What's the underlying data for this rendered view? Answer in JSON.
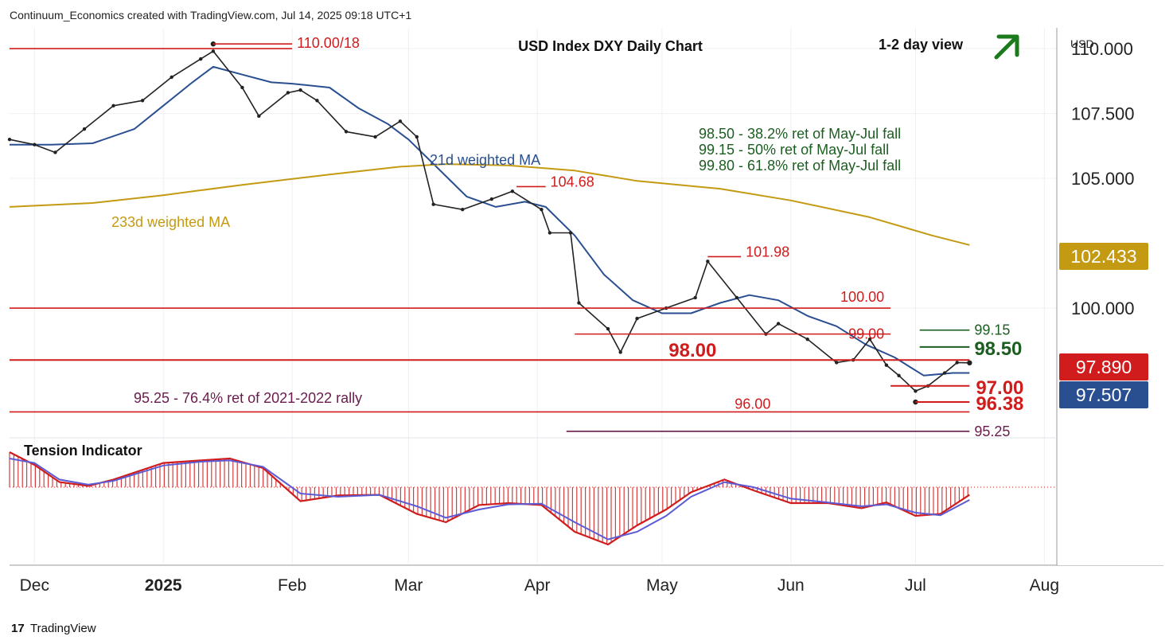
{
  "header": {
    "created_by": "Continuum_Economics created with TradingView.com, Jul 14, 2025 09:18 UTC+1",
    "chart_title": "USD Index DXY Daily Chart",
    "view_label": "1-2 day view",
    "currency": "USD",
    "footer_brand": "TradingView",
    "view_arrow_color": "#1b7a1b"
  },
  "chart_data": {
    "type": "line",
    "title": "USD Index DXY Daily Chart",
    "instrument": "USD Index DXY",
    "timeframe": "Daily",
    "ylim": [
      95.0,
      110.8
    ],
    "y_ticks": [
      {
        "value": 110.0,
        "label": "110.000"
      },
      {
        "value": 107.5,
        "label": "107.500"
      },
      {
        "value": 105.0,
        "label": "105.000"
      },
      {
        "value": 100.0,
        "label": "100.000"
      }
    ],
    "x_ticks": [
      {
        "date": "2024-12-01",
        "label": "Dec",
        "bold": false
      },
      {
        "date": "2025-01-01",
        "label": "2025",
        "bold": true
      },
      {
        "date": "2025-02-01",
        "label": "Feb",
        "bold": false
      },
      {
        "date": "2025-03-01",
        "label": "Mar",
        "bold": false
      },
      {
        "date": "2025-04-01",
        "label": "Apr",
        "bold": false
      },
      {
        "date": "2025-05-01",
        "label": "May",
        "bold": false
      },
      {
        "date": "2025-06-01",
        "label": "Jun",
        "bold": false
      },
      {
        "date": "2025-07-01",
        "label": "Jul",
        "bold": false
      },
      {
        "date": "2025-08-01",
        "label": "Aug",
        "bold": false
      }
    ],
    "price_badges": [
      {
        "value": 102.433,
        "label": "102.433",
        "color": "#c49a12"
      },
      {
        "value": 97.89,
        "label": "97.890",
        "color": "#d01c1c"
      },
      {
        "value": 97.507,
        "label": "97.507",
        "color": "#2a4f91"
      }
    ],
    "key_points": [
      {
        "name": "high",
        "date": "2025-01-13",
        "value": 110.18
      },
      {
        "name": "low",
        "date": "2025-07-01",
        "value": 96.38
      },
      {
        "name": "last",
        "date": "2025-07-14",
        "value": 97.89
      }
    ],
    "levels": [
      {
        "value": 110.0,
        "label": "110.00/18",
        "color": "#d01c1c",
        "from": "2024-11-25",
        "to": "2025-02-01",
        "bold": false
      },
      {
        "value": 104.68,
        "label": "104.68",
        "color": "#d01c1c",
        "from": "2025-03-27",
        "to": "2025-04-03",
        "bold": false
      },
      {
        "value": 101.98,
        "label": "101.98",
        "color": "#d01c1c",
        "from": "2025-05-12",
        "to": "2025-05-20",
        "bold": false
      },
      {
        "value": 100.0,
        "label": "100.00",
        "color": "#d01c1c",
        "from": "2024-11-25",
        "to": "2025-06-25",
        "bold": false
      },
      {
        "value": 99.0,
        "label": "99.00",
        "color": "#d01c1c",
        "from": "2025-04-10",
        "to": "2025-06-25",
        "bold": false
      },
      {
        "value": 98.0,
        "label": "98.00",
        "color": "#d01c1c",
        "from": "2024-11-25",
        "to": "2025-07-14",
        "bold": true
      },
      {
        "value": 97.0,
        "label": "97.00",
        "color": "#d01c1c",
        "from": "2025-06-25",
        "to": "2025-07-14",
        "bold": true
      },
      {
        "value": 96.38,
        "label": "96.38",
        "color": "#d01c1c",
        "from": "2025-07-01",
        "to": "2025-07-14",
        "bold": true
      },
      {
        "value": 96.0,
        "label": "96.00",
        "color": "#d01c1c",
        "from": "2024-11-25",
        "to": "2025-07-14",
        "bold": false
      },
      {
        "value": 99.15,
        "label": "99.15",
        "color": "#1b5e20",
        "from": "2025-07-02",
        "to": "2025-07-14",
        "bold": false
      },
      {
        "value": 98.5,
        "label": "98.50",
        "color": "#1b5e20",
        "from": "2025-07-02",
        "to": "2025-07-14",
        "bold": true
      },
      {
        "value": 95.25,
        "label": "95.25",
        "color": "#6a1b4d",
        "from": "2025-04-08",
        "to": "2025-07-14",
        "bold": false
      }
    ],
    "retracement_notes": [
      "98.50 - 38.2% ret of May-Jul fall",
      "99.15 - 50% ret of May-Jul fall",
      "99.80 - 61.8% ret of May-Jul fall"
    ],
    "rally_note": "95.25 - 76.4% ret of 2021-2022 rally",
    "series": [
      {
        "name": "21d weighted MA",
        "color": "#2a4f91",
        "points": [
          [
            "2024-11-25",
            106.3
          ],
          [
            "2024-12-05",
            106.3
          ],
          [
            "2024-12-15",
            106.35
          ],
          [
            "2024-12-25",
            106.9
          ],
          [
            "2025-01-01",
            107.8
          ],
          [
            "2025-01-08",
            108.7
          ],
          [
            "2025-01-13",
            109.3
          ],
          [
            "2025-01-20",
            109.0
          ],
          [
            "2025-01-27",
            108.7
          ],
          [
            "2025-02-01",
            108.65
          ],
          [
            "2025-02-10",
            108.5
          ],
          [
            "2025-02-17",
            107.7
          ],
          [
            "2025-02-24",
            107.1
          ],
          [
            "2025-03-01",
            106.5
          ],
          [
            "2025-03-08",
            105.4
          ],
          [
            "2025-03-15",
            104.3
          ],
          [
            "2025-03-22",
            103.9
          ],
          [
            "2025-03-29",
            104.1
          ],
          [
            "2025-04-03",
            103.9
          ],
          [
            "2025-04-10",
            102.8
          ],
          [
            "2025-04-17",
            101.3
          ],
          [
            "2025-04-24",
            100.3
          ],
          [
            "2025-05-01",
            99.8
          ],
          [
            "2025-05-08",
            99.8
          ],
          [
            "2025-05-15",
            100.2
          ],
          [
            "2025-05-22",
            100.5
          ],
          [
            "2025-05-29",
            100.3
          ],
          [
            "2025-06-05",
            99.7
          ],
          [
            "2025-06-12",
            99.3
          ],
          [
            "2025-06-19",
            98.6
          ],
          [
            "2025-06-26",
            98.1
          ],
          [
            "2025-07-03",
            97.4
          ],
          [
            "2025-07-10",
            97.5
          ],
          [
            "2025-07-14",
            97.5
          ]
        ]
      },
      {
        "name": "233d weighted MA",
        "color": "#c49a12",
        "points": [
          [
            "2024-11-25",
            103.9
          ],
          [
            "2024-12-15",
            104.05
          ],
          [
            "2025-01-01",
            104.35
          ],
          [
            "2025-01-20",
            104.75
          ],
          [
            "2025-02-10",
            105.15
          ],
          [
            "2025-02-27",
            105.45
          ],
          [
            "2025-03-10",
            105.55
          ],
          [
            "2025-03-25",
            105.5
          ],
          [
            "2025-04-10",
            105.3
          ],
          [
            "2025-04-25",
            104.9
          ],
          [
            "2025-05-15",
            104.6
          ],
          [
            "2025-06-01",
            104.15
          ],
          [
            "2025-06-20",
            103.5
          ],
          [
            "2025-07-05",
            102.8
          ],
          [
            "2025-07-14",
            102.43
          ]
        ]
      },
      {
        "name": "DXY daily close",
        "color": "#222222",
        "points": [
          [
            "2024-11-25",
            106.5
          ],
          [
            "2024-12-01",
            106.3
          ],
          [
            "2024-12-06",
            106.0
          ],
          [
            "2024-12-13",
            106.9
          ],
          [
            "2024-12-20",
            107.8
          ],
          [
            "2024-12-27",
            108.0
          ],
          [
            "2025-01-03",
            108.9
          ],
          [
            "2025-01-10",
            109.6
          ],
          [
            "2025-01-13",
            109.9
          ],
          [
            "2025-01-20",
            108.5
          ],
          [
            "2025-01-24",
            107.4
          ],
          [
            "2025-01-31",
            108.3
          ],
          [
            "2025-02-03",
            108.4
          ],
          [
            "2025-02-07",
            108.0
          ],
          [
            "2025-02-14",
            106.8
          ],
          [
            "2025-02-21",
            106.6
          ],
          [
            "2025-02-27",
            107.2
          ],
          [
            "2025-03-03",
            106.6
          ],
          [
            "2025-03-07",
            104.0
          ],
          [
            "2025-03-14",
            103.8
          ],
          [
            "2025-03-21",
            104.2
          ],
          [
            "2025-03-26",
            104.5
          ],
          [
            "2025-04-02",
            103.8
          ],
          [
            "2025-04-04",
            102.9
          ],
          [
            "2025-04-09",
            102.9
          ],
          [
            "2025-04-11",
            100.2
          ],
          [
            "2025-04-18",
            99.2
          ],
          [
            "2025-04-21",
            98.3
          ],
          [
            "2025-04-25",
            99.6
          ],
          [
            "2025-05-02",
            100.0
          ],
          [
            "2025-05-09",
            100.4
          ],
          [
            "2025-05-12",
            101.8
          ],
          [
            "2025-05-19",
            100.4
          ],
          [
            "2025-05-26",
            99.0
          ],
          [
            "2025-05-29",
            99.4
          ],
          [
            "2025-06-05",
            98.8
          ],
          [
            "2025-06-12",
            97.9
          ],
          [
            "2025-06-16",
            98.0
          ],
          [
            "2025-06-20",
            98.8
          ],
          [
            "2025-06-24",
            97.8
          ],
          [
            "2025-06-27",
            97.4
          ],
          [
            "2025-07-01",
            96.8
          ],
          [
            "2025-07-04",
            97.0
          ],
          [
            "2025-07-08",
            97.5
          ],
          [
            "2025-07-11",
            97.9
          ],
          [
            "2025-07-14",
            97.89
          ]
        ]
      }
    ],
    "tension_indicator": {
      "title": "Tension Indicator",
      "ylim": [
        -1.2,
        0.75
      ],
      "baseline": 0,
      "histogram_color": "#d01c1c",
      "signal_color": "#d01c1c",
      "smooth_color": "#5b5bd6",
      "series": [
        {
          "name": "histogram",
          "points": [
            [
              "2024-11-25",
              0.55
            ],
            [
              "2024-12-01",
              0.35
            ],
            [
              "2024-12-07",
              0.08
            ],
            [
              "2024-12-14",
              0.02
            ],
            [
              "2024-12-20",
              0.12
            ],
            [
              "2025-01-01",
              0.38
            ],
            [
              "2025-01-10",
              0.42
            ],
            [
              "2025-01-17",
              0.45
            ],
            [
              "2025-01-25",
              0.3
            ],
            [
              "2025-02-03",
              -0.22
            ],
            [
              "2025-02-12",
              -0.13
            ],
            [
              "2025-02-22",
              -0.12
            ],
            [
              "2025-03-03",
              -0.42
            ],
            [
              "2025-03-10",
              -0.55
            ],
            [
              "2025-03-18",
              -0.28
            ],
            [
              "2025-03-25",
              -0.25
            ],
            [
              "2025-04-02",
              -0.28
            ],
            [
              "2025-04-10",
              -0.7
            ],
            [
              "2025-04-18",
              -0.9
            ],
            [
              "2025-04-25",
              -0.6
            ],
            [
              "2025-05-02",
              -0.35
            ],
            [
              "2025-05-08",
              -0.08
            ],
            [
              "2025-05-16",
              0.12
            ],
            [
              "2025-05-23",
              -0.05
            ],
            [
              "2025-06-01",
              -0.25
            ],
            [
              "2025-06-10",
              -0.25
            ],
            [
              "2025-06-18",
              -0.33
            ],
            [
              "2025-06-24",
              -0.24
            ],
            [
              "2025-07-01",
              -0.45
            ],
            [
              "2025-07-07",
              -0.42
            ],
            [
              "2025-07-14",
              -0.12
            ]
          ]
        },
        {
          "name": "smoothed",
          "points": [
            [
              "2024-11-25",
              0.45
            ],
            [
              "2024-12-01",
              0.38
            ],
            [
              "2024-12-07",
              0.12
            ],
            [
              "2024-12-14",
              0.04
            ],
            [
              "2024-12-20",
              0.1
            ],
            [
              "2025-01-01",
              0.34
            ],
            [
              "2025-01-10",
              0.4
            ],
            [
              "2025-01-17",
              0.42
            ],
            [
              "2025-01-25",
              0.32
            ],
            [
              "2025-02-03",
              -0.1
            ],
            [
              "2025-02-12",
              -0.15
            ],
            [
              "2025-02-22",
              -0.12
            ],
            [
              "2025-03-03",
              -0.3
            ],
            [
              "2025-03-10",
              -0.48
            ],
            [
              "2025-03-18",
              -0.35
            ],
            [
              "2025-03-25",
              -0.27
            ],
            [
              "2025-04-02",
              -0.26
            ],
            [
              "2025-04-10",
              -0.55
            ],
            [
              "2025-04-18",
              -0.82
            ],
            [
              "2025-04-25",
              -0.7
            ],
            [
              "2025-05-02",
              -0.45
            ],
            [
              "2025-05-08",
              -0.15
            ],
            [
              "2025-05-16",
              0.08
            ],
            [
              "2025-05-23",
              0.0
            ],
            [
              "2025-06-01",
              -0.18
            ],
            [
              "2025-06-10",
              -0.24
            ],
            [
              "2025-06-18",
              -0.3
            ],
            [
              "2025-06-24",
              -0.27
            ],
            [
              "2025-07-01",
              -0.4
            ],
            [
              "2025-07-07",
              -0.44
            ],
            [
              "2025-07-14",
              -0.2
            ]
          ]
        }
      ]
    }
  }
}
